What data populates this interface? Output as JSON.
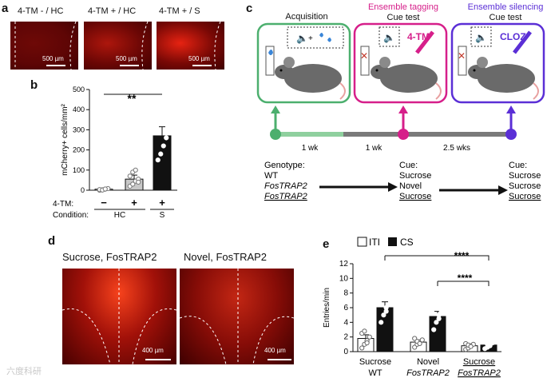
{
  "panel_a": {
    "letter": "a",
    "images": [
      {
        "title": "4-TM - / HC",
        "scale": "500 µm",
        "intensity": 0.12
      },
      {
        "title": "4-TM + / HC",
        "scale": "500 µm",
        "intensity": 0.5
      },
      {
        "title": "4-TM + / S",
        "scale": "500 µm",
        "intensity": 0.85
      }
    ]
  },
  "panel_b": {
    "letter": "b",
    "significance": "**",
    "tm_row_label": "4-TM:",
    "tm_signs": [
      "−",
      "+",
      "+"
    ],
    "condition_row_label": "Condition:",
    "conditions": [
      "HC",
      "S"
    ]
  },
  "panel_c": {
    "letter": "c",
    "stages": [
      {
        "title": "Acquisition",
        "subtitle": "",
        "color": "#4caf6e",
        "overlay": ""
      },
      {
        "title": "Ensemble tagging",
        "subtitle": "Cue test",
        "color": "#d61f8a",
        "overlay": "4-TM"
      },
      {
        "title": "Ensemble silencing",
        "subtitle": "Cue test",
        "color": "#5b2fd6",
        "overlay": "CLOZ"
      }
    ],
    "intervals": [
      "1 wk",
      "1 wk",
      "2.5 wks"
    ],
    "genotype_label": "Genotype:",
    "genotypes": [
      "WT",
      "FosTRAP2",
      "FosTRAP2"
    ],
    "cue_label_1": "Cue:",
    "cues_1": [
      "Sucrose",
      "Novel",
      "Sucrose"
    ],
    "cue_label_2": "Cue:",
    "cues_2": [
      "Sucrose",
      "Sucrose",
      "Sucrose"
    ]
  },
  "panel_d": {
    "letter": "d",
    "images": [
      {
        "title": "Sucrose, FosTRAP2",
        "scale": "400 µm"
      },
      {
        "title": "Novel, FosTRAP2",
        "scale": "400 µm"
      }
    ]
  },
  "panel_e": {
    "letter": "e",
    "legend": [
      "ITI",
      "CS"
    ],
    "significance": [
      "****",
      "****"
    ],
    "group_labels": [
      {
        "cue": "Sucrose",
        "genotype": "WT"
      },
      {
        "cue": "Novel",
        "genotype": "FosTRAP2"
      },
      {
        "cue": "Sucrose",
        "genotype": "FosTRAP2"
      }
    ]
  },
  "watermark": "六度科研",
  "chart_data": [
    {
      "type": "bar",
      "panel": "b",
      "categories": [
        "− / HC",
        "+ / HC",
        "+ / S"
      ],
      "values": [
        5,
        55,
        270
      ],
      "errors": [
        3,
        20,
        45
      ],
      "points": [
        [
          0,
          2,
          5,
          8,
          3,
          1,
          6
        ],
        [
          20,
          30,
          45,
          55,
          70,
          90,
          100,
          40
        ],
        [
          150,
          180,
          220,
          260,
          300,
          350,
          370,
          390
        ]
      ],
      "ylabel": "mCherry+ cells/mm²",
      "ylim": [
        0,
        500
      ],
      "yticks": [
        0,
        100,
        200,
        300,
        400,
        500
      ]
    },
    {
      "type": "bar",
      "panel": "e",
      "categories": [
        "Sucrose WT",
        "Novel FosTRAP2",
        "Sucrose FosTRAP2"
      ],
      "series": [
        {
          "name": "ITI",
          "values": [
            1.8,
            1.3,
            0.8
          ],
          "errors": [
            0.5,
            0.3,
            0.2
          ],
          "points": [
            [
              0.5,
              1.0,
              1.5,
              2.0,
              2.5,
              2.8,
              1.2
            ],
            [
              0.6,
              1.0,
              1.3,
              1.6,
              1.8,
              1.4,
              1.1
            ],
            [
              0.3,
              0.5,
              0.8,
              1.0,
              1.1,
              0.9,
              0.7
            ]
          ]
        },
        {
          "name": "CS",
          "values": [
            6.0,
            4.8,
            0.9
          ],
          "errors": [
            0.8,
            0.7,
            0.2
          ],
          "points": [
            [
              4.0,
              5.0,
              6.0,
              7.5,
              8.0,
              11.0,
              5.5
            ],
            [
              3.0,
              4.0,
              5.0,
              5.5,
              6.5,
              7.0,
              4.5
            ],
            [
              0.4,
              0.6,
              0.9,
              1.2,
              1.4,
              1.0,
              0.8
            ]
          ]
        }
      ],
      "ylabel": "Entries/min",
      "ylim": [
        0,
        12
      ],
      "yticks": [
        0,
        2,
        4,
        6,
        8,
        10,
        12
      ]
    }
  ]
}
